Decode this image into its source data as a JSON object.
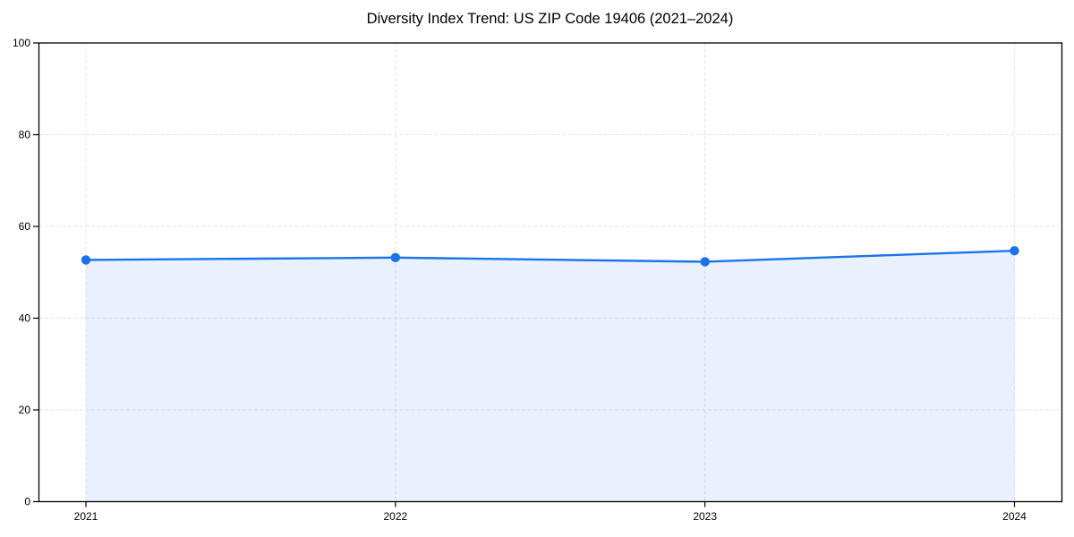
{
  "chart_data": {
    "type": "line",
    "title": "Diversity Index Trend: US ZIP Code 19406 (2021–2024)",
    "categories": [
      "2021",
      "2022",
      "2023",
      "2024"
    ],
    "series": [
      {
        "name": "Diversity Index",
        "values": [
          52.7,
          53.2,
          52.3,
          54.7
        ]
      }
    ],
    "xlabel": "",
    "ylabel": "",
    "ylim": [
      0,
      100
    ],
    "yticks": [
      0,
      20,
      40,
      60,
      80,
      100
    ],
    "grid": true,
    "legend": false,
    "area_fill": true,
    "colors": {
      "line": "#1a73e8",
      "marker": "#1a73e8",
      "area": "rgba(26,115,232,0.10)",
      "gridline": "#e4e4e4",
      "axis": "#000000",
      "text": "#000000",
      "background": "#ffffff"
    }
  }
}
